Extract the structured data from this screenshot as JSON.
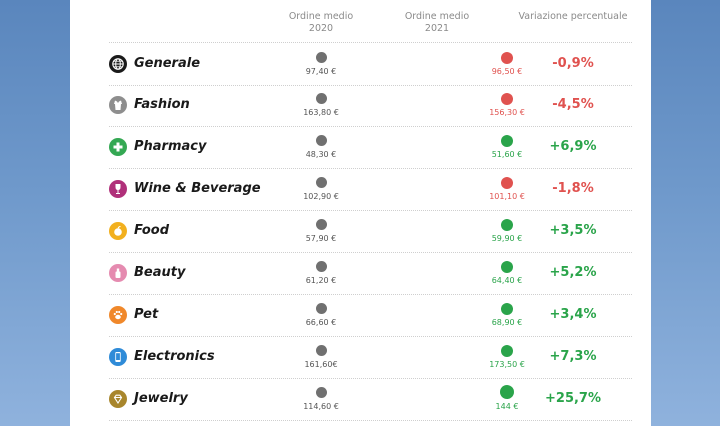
{
  "header": {
    "col2020_line1": "Ordine medio",
    "col2020_line2": "2020",
    "col2021_line1": "Ordine medio",
    "col2021_line2": "2021",
    "colpct": "Variazione percentuale"
  },
  "colors": {
    "neutral": "#707070",
    "increase": "#2aa44a",
    "decrease": "#e0524f"
  },
  "chart_data": {
    "type": "table",
    "columns": [
      "",
      "Ordine medio 2020",
      "Ordine medio 2021",
      "Variazione percentuale"
    ],
    "rows": [
      {
        "category": "Generale",
        "icon": "globe-icon",
        "icon_color": "#1a1a1a",
        "v2020": "97,40 €",
        "v2021": "96,50 €",
        "pct": "-0,9%",
        "trend": "down"
      },
      {
        "category": "Fashion",
        "icon": "shirt-icon",
        "icon_color": "#8e8e8e",
        "v2020": "163,80 €",
        "v2021": "156,30 €",
        "pct": "-4,5%",
        "trend": "down"
      },
      {
        "category": "Pharmacy",
        "icon": "cross-icon",
        "icon_color": "#34a853",
        "v2020": "48,30 €",
        "v2021": "51,60 €",
        "pct": "+6,9%",
        "trend": "up"
      },
      {
        "category": "Wine & Beverage",
        "icon": "wine-glass-icon",
        "icon_color": "#b0307a",
        "v2020": "102,90 €",
        "v2021": "101,10 €",
        "pct": "-1,8%",
        "trend": "down"
      },
      {
        "category": "Food",
        "icon": "apple-icon",
        "icon_color": "#f2b01e",
        "v2020": "57,90 €",
        "v2021": "59,90 €",
        "pct": "+3,5%",
        "trend": "up"
      },
      {
        "category": "Beauty",
        "icon": "bottle-icon",
        "icon_color": "#e58bb0",
        "v2020": "61,20 €",
        "v2021": "64,40 €",
        "pct": "+5,2%",
        "trend": "up"
      },
      {
        "category": "Pet",
        "icon": "paw-icon",
        "icon_color": "#f0882b",
        "v2020": "66,60 €",
        "v2021": "68,90 €",
        "pct": "+3,4%",
        "trend": "up"
      },
      {
        "category": "Electronics",
        "icon": "smartphone-icon",
        "icon_color": "#2f8bd8",
        "v2020": "161,60€",
        "v2021": "173,50 €",
        "pct": "+7,3%",
        "trend": "up"
      },
      {
        "category": "Jewelry",
        "icon": "diamond-icon",
        "icon_color": "#a8862c",
        "v2020": "114,60 €",
        "v2021": "144 €",
        "pct": "+25,7%",
        "trend": "up"
      }
    ]
  }
}
